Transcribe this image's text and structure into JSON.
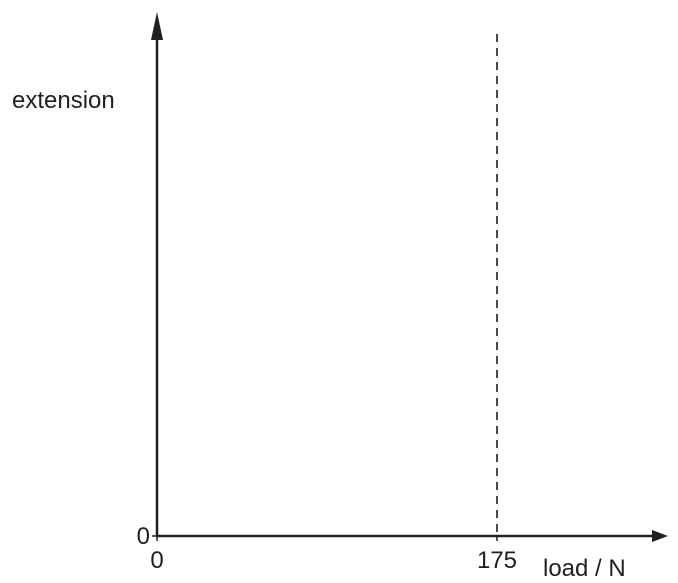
{
  "chart_data": {
    "type": "line",
    "xlabel": "load / N",
    "ylabel": "extension",
    "x_ticks": [
      {
        "value": 0,
        "label": "0"
      },
      {
        "value": 175,
        "label": "175"
      }
    ],
    "y_ticks": [
      {
        "value": 0,
        "label": "0"
      }
    ],
    "reference_lines": [
      {
        "axis": "x",
        "value": 175,
        "style": "dashed"
      }
    ],
    "series": [],
    "grid": false
  }
}
